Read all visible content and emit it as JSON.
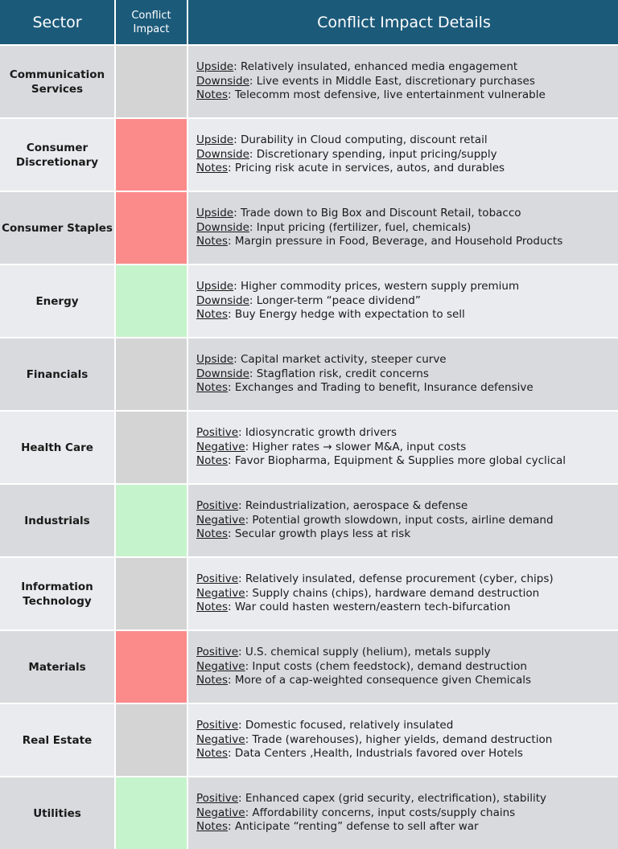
{
  "header": {
    "sector": "Sector",
    "impact": "Conflict\nImpact",
    "details": "Conflict Impact Details"
  },
  "colors": {
    "header": "#1c5a7a",
    "neutral": "#d4d4d4",
    "negative": "#fb8b8b",
    "positive": "#c5f3cb"
  },
  "rows": [
    {
      "sector": "Communication\nServices",
      "impact": "neutral",
      "lines": [
        {
          "label": "Upside",
          "text": ": Relatively insulated, enhanced media engagement"
        },
        {
          "label": "Downside",
          "text": ": Live events in Middle East, discretionary purchases"
        },
        {
          "label": "Notes",
          "text": ": Telecomm most defensive, live entertainment vulnerable"
        }
      ]
    },
    {
      "sector": "Consumer\nDiscretionary",
      "impact": "negative",
      "lines": [
        {
          "label": "Upside",
          "text": ": Durability in Cloud computing, discount retail"
        },
        {
          "label": "Downside",
          "text": ": Discretionary spending, input pricing/supply"
        },
        {
          "label": "Notes",
          "text": ": Pricing risk acute in services, autos, and durables"
        }
      ]
    },
    {
      "sector": "Consumer Staples",
      "impact": "negative",
      "lines": [
        {
          "label": "Upside",
          "text": ": Trade down to Big Box and Discount Retail, tobacco"
        },
        {
          "label": "Downside",
          "text": ": Input pricing (fertilizer, fuel, chemicals)"
        },
        {
          "label": "Notes",
          "text": ": Margin pressure in Food, Beverage, and Household Products"
        }
      ]
    },
    {
      "sector": "Energy",
      "impact": "positive",
      "lines": [
        {
          "label": "Upside",
          "text": ": Higher commodity prices, western supply premium"
        },
        {
          "label": "Downside",
          "text": ": Longer-term “peace dividend”"
        },
        {
          "label": "Notes",
          "text": ": Buy Energy hedge with expectation to sell"
        }
      ]
    },
    {
      "sector": "Financials",
      "impact": "neutral",
      "lines": [
        {
          "label": "Upside",
          "text": ": Capital market activity, steeper curve"
        },
        {
          "label": "Downside",
          "text": ": Stagflation risk, credit concerns"
        },
        {
          "label": "Notes",
          "text": ": Exchanges and Trading to benefit, Insurance defensive"
        }
      ]
    },
    {
      "sector": "Health Care",
      "impact": "neutral",
      "lines": [
        {
          "label": "Positive",
          "text": ": Idiosyncratic growth drivers"
        },
        {
          "label": "Negative",
          "text": ": Higher rates → slower M&A, input costs"
        },
        {
          "label": "Notes",
          "text": ": Favor Biopharma, Equipment & Supplies more global cyclical"
        }
      ]
    },
    {
      "sector": "Industrials",
      "impact": "positive",
      "lines": [
        {
          "label": "Positive",
          "text": ": Reindustrialization, aerospace & defense"
        },
        {
          "label": "Negative",
          "text": ": Potential growth slowdown, input costs, airline demand"
        },
        {
          "label": "Notes",
          "text": ": Secular growth plays less at risk"
        }
      ]
    },
    {
      "sector": "Information\nTechnology",
      "impact": "neutral",
      "lines": [
        {
          "label": "Positive",
          "text": ": Relatively insulated, defense procurement (cyber, chips)"
        },
        {
          "label": "Negative",
          "text": ": Supply chains (chips), hardware demand destruction"
        },
        {
          "label": "Notes",
          "text": ": War could hasten western/eastern tech-bifurcation"
        }
      ]
    },
    {
      "sector": "Materials",
      "impact": "negative",
      "lines": [
        {
          "label": "Positive",
          "text": ": U.S. chemical supply (helium), metals supply"
        },
        {
          "label": "Negative",
          "text": ": Input costs (chem feedstock), demand destruction"
        },
        {
          "label": "Notes",
          "text": ": More of a cap-weighted consequence given Chemicals"
        }
      ]
    },
    {
      "sector": "Real Estate",
      "impact": "neutral",
      "lines": [
        {
          "label": "Positive",
          "text": ": Domestic focused, relatively insulated"
        },
        {
          "label": "Negative",
          "text": ": Trade (warehouses), higher yields, demand destruction"
        },
        {
          "label": "Notes",
          "text": ": Data Centers ,Health, Industrials favored over Hotels"
        }
      ]
    },
    {
      "sector": "Utilities",
      "impact": "positive",
      "lines": [
        {
          "label": "Positive",
          "text": ": Enhanced capex (grid security, electrification), stability"
        },
        {
          "label": "Negative",
          "text": ": Affordability concerns, input costs/supply chains"
        },
        {
          "label": "Notes",
          "text": ": Anticipate “renting” defense to sell after war"
        }
      ]
    }
  ]
}
